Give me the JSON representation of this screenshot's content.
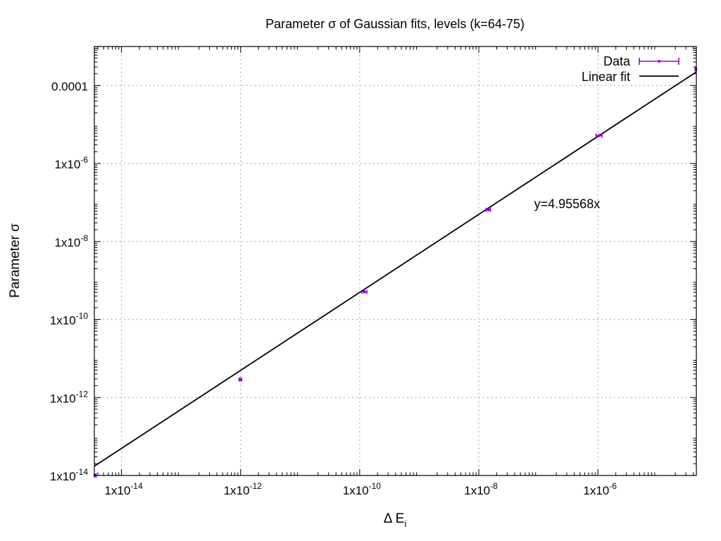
{
  "chart_data": {
    "type": "scatter",
    "title": "Parameter σ of Gaussian fits, levels (k=64-75)",
    "xlabel": {
      "main": "Δ E",
      "subscript": "i"
    },
    "ylabel": "Parameter σ",
    "x_scale": "log",
    "y_scale": "log",
    "xlim": [
      3.5e-15,
      4.5e-05
    ],
    "ylim": [
      1e-14,
      0.001
    ],
    "grid": true,
    "legend_position": "top-right",
    "x_ticks": [
      {
        "value": 1e-14,
        "base": "1x10",
        "exp": "-14"
      },
      {
        "value": 1e-12,
        "base": "1x10",
        "exp": "-12"
      },
      {
        "value": 1e-10,
        "base": "1x10",
        "exp": "-10"
      },
      {
        "value": 1e-08,
        "base": "1x10",
        "exp": "-8"
      },
      {
        "value": 1e-06,
        "base": "1x10",
        "exp": "-6"
      }
    ],
    "y_ticks": [
      {
        "value": 1e-14,
        "base": "1x10",
        "exp": "-14"
      },
      {
        "value": 1e-12,
        "base": "1x10",
        "exp": "-12"
      },
      {
        "value": 1e-10,
        "base": "1x10",
        "exp": "-10"
      },
      {
        "value": 1e-08,
        "base": "1x10",
        "exp": "-8"
      },
      {
        "value": 1e-06,
        "base": "1x10",
        "exp": "-6"
      },
      {
        "value": 0.0001,
        "base": "0.0001",
        "exp": ""
      }
    ],
    "series": [
      {
        "name": "Data",
        "kind": "points-with-xerror",
        "color": "#9400d3",
        "points": [
          {
            "x": 3.6e-15,
            "y": 1e-14,
            "xerr": 1.5e-16
          },
          {
            "x": 9.9e-13,
            "y": 2.9e-12,
            "xerr": 5e-14
          },
          {
            "x": 1.2e-10,
            "y": 5.1e-10,
            "xerr": 1.2e-11
          },
          {
            "x": 1.45e-08,
            "y": 6.5e-08,
            "xerr": 1.2e-09
          },
          {
            "x": 1.05e-06,
            "y": 5.2e-06,
            "xerr": 1.2e-07
          },
          {
            "x": 4.4e-05,
            "y": 0.00026,
            "xerr": 1e-06
          }
        ]
      },
      {
        "name": "Linear fit",
        "kind": "line",
        "color": "#000000",
        "slope": 4.95568
      }
    ],
    "annotations": [
      {
        "text": "y=4.95568x",
        "x": 8.5e-08,
        "y": 7.2e-08
      }
    ]
  }
}
